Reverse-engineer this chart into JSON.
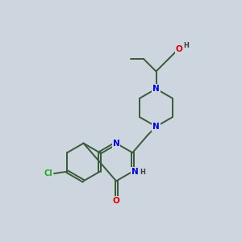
{
  "bg_color": "#cdd5de",
  "bond_color": "#3a5a3a",
  "N_color": "#0000ee",
  "O_color": "#dd0000",
  "Cl_color": "#22aa22",
  "H_color": "#404040",
  "bond_width": 1.4,
  "dbo": 0.05,
  "xlim": [
    0,
    10
  ],
  "ylim": [
    0,
    10
  ]
}
